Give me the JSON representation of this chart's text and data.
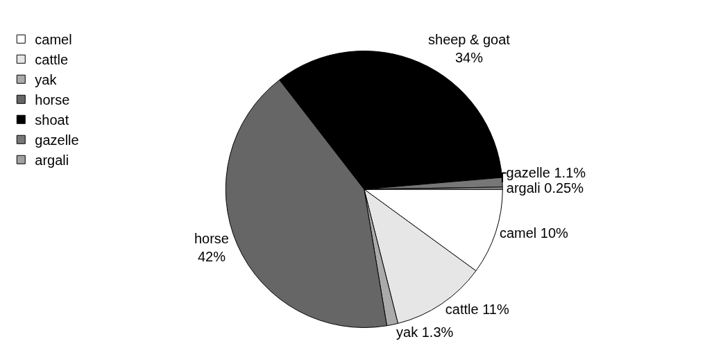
{
  "chart_data": {
    "type": "pie",
    "categories": [
      "camel",
      "cattle",
      "yak",
      "horse",
      "shoat",
      "gazelle",
      "argali"
    ],
    "values": [
      10,
      11,
      1.3,
      42,
      34,
      1.1,
      0.25
    ],
    "colors": [
      "#ffffff",
      "#e6e6e6",
      "#aaaaaa",
      "#666666",
      "#000000",
      "#777777",
      "#a0a0a0"
    ],
    "value_labels": [
      "camel 10%",
      "cattle 11%",
      "yak 1.3%",
      "horse\n42%",
      "sheep & goat\n34%",
      "gazelle 1.1%",
      "argali 0.25%"
    ],
    "legend": "top left"
  }
}
